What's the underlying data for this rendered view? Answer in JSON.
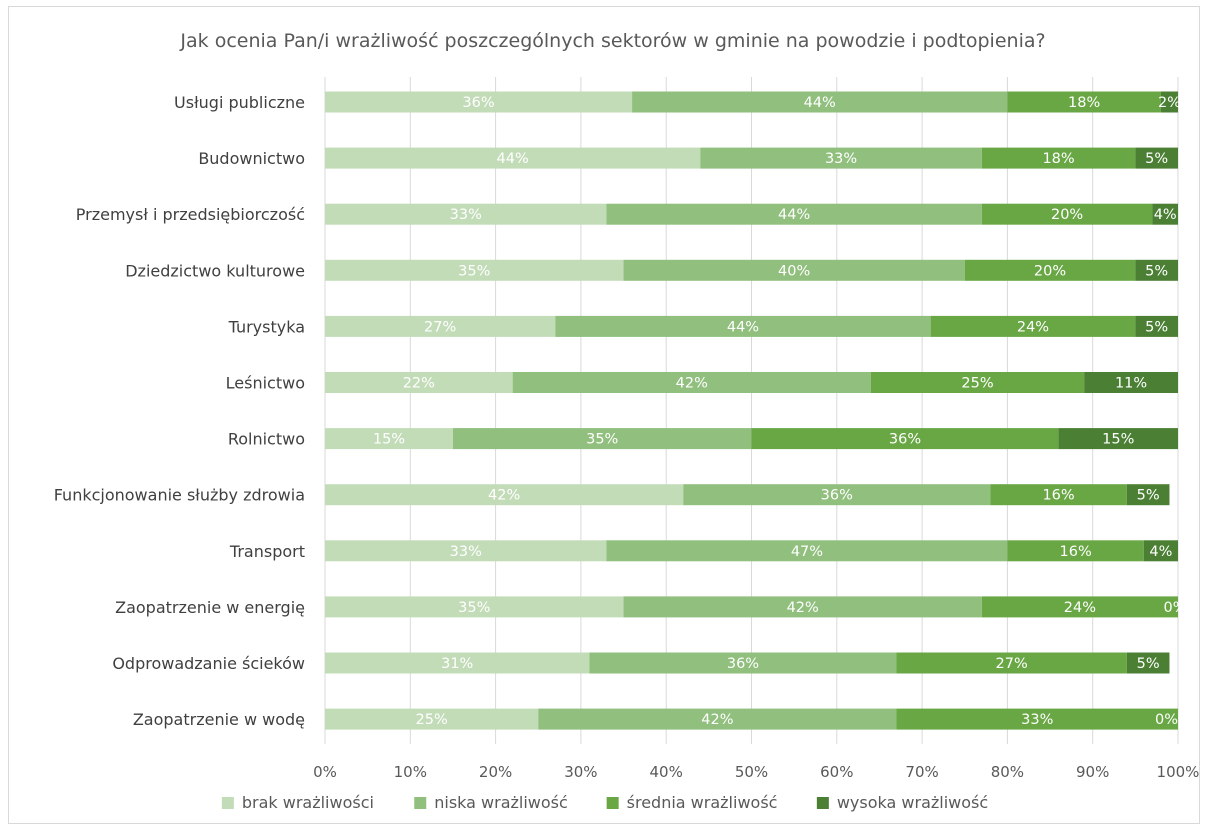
{
  "chart_data": {
    "type": "bar",
    "orientation": "horizontal",
    "stacked": "percent",
    "title": "Jak ocenia Pan/i wrażliwość poszczególnych sektorów w gminie na powodzie i podtopienia?",
    "categories": [
      "Usługi publiczne",
      "Budownictwo",
      "Przemysł i przedsiębiorczość",
      "Dziedzictwo kulturowe",
      "Turystyka",
      "Leśnictwo",
      "Rolnictwo",
      "Funkcjonowanie służby zdrowia",
      "Transport",
      "Zaopatrzenie w energię",
      "Odprowadzanie ścieków",
      "Zaopatrzenie w wodę"
    ],
    "series": [
      {
        "name": "brak wrażliwości",
        "color": "#c3dcb8",
        "values": [
          36,
          44,
          33,
          35,
          27,
          22,
          15,
          42,
          33,
          35,
          31,
          25
        ],
        "labels": [
          "36%",
          "44%",
          "33%",
          "35%",
          "27%",
          "22%",
          "15%",
          "42%",
          "33%",
          "35%",
          "31%",
          "25%"
        ]
      },
      {
        "name": "niska wrażliwość",
        "color": "#90bf7e",
        "values": [
          44,
          33,
          44,
          40,
          44,
          42,
          35,
          36,
          47,
          42,
          36,
          42
        ],
        "labels": [
          "44%",
          "33%",
          "44%",
          "40%",
          "44%",
          "42%",
          "35%",
          "36%",
          "47%",
          "42%",
          "36%",
          "42%"
        ]
      },
      {
        "name": "średnia wrażliwość",
        "color": "#69a745",
        "values": [
          18,
          18,
          20,
          20,
          24,
          25,
          36,
          16,
          16,
          24,
          27,
          33
        ],
        "labels": [
          "18%",
          "18%",
          "20%",
          "20%",
          "24%",
          "25%",
          "36%",
          "16%",
          "16%",
          "24%",
          "27%",
          "33%"
        ]
      },
      {
        "name": "wysoka wrażliwość",
        "color": "#4a7f34",
        "values": [
          2,
          5,
          4,
          5,
          5,
          11,
          15,
          5,
          4,
          0,
          5,
          0
        ],
        "labels": [
          "2%",
          "5%",
          "4%",
          "5%",
          "5%",
          "11%",
          "15%",
          "5%",
          "4%",
          "0%",
          "5%",
          "0%"
        ]
      }
    ],
    "xlim": [
      0,
      100
    ],
    "x_ticks": [
      "0%",
      "10%",
      "20%",
      "30%",
      "40%",
      "50%",
      "60%",
      "70%",
      "80%",
      "90%",
      "100%"
    ],
    "grid": true,
    "legend_position": "bottom"
  }
}
